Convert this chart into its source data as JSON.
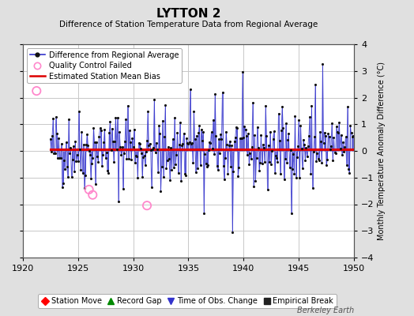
{
  "title": "LYTTON 2",
  "subtitle": "Difference of Station Temperature Data from Regional Average",
  "ylabel_right": "Monthly Temperature Anomaly Difference (°C)",
  "xlim": [
    1920,
    1950
  ],
  "ylim": [
    -4,
    4
  ],
  "yticks": [
    -4,
    -3,
    -2,
    -1,
    0,
    1,
    2,
    3,
    4
  ],
  "xticks": [
    1920,
    1925,
    1930,
    1935,
    1940,
    1945,
    1950
  ],
  "bias_value": 0.07,
  "background_color": "#e0e0e0",
  "plot_bg_color": "#ffffff",
  "grid_color": "#c8c8c8",
  "line_color": "#3333cc",
  "line_alpha": 0.75,
  "dot_color": "#111111",
  "bias_color": "#dd0000",
  "qc_fail_color": "#ff88cc",
  "watermark": "Berkeley Earth",
  "seed": 42,
  "qc_fail_points": [
    [
      1921.25,
      2.25
    ],
    [
      1926.0,
      -1.45
    ],
    [
      1926.33,
      -1.65
    ],
    [
      1931.25,
      -2.05
    ]
  ],
  "bias_x_start": 1922.5,
  "bias_x_end": 1950.0
}
